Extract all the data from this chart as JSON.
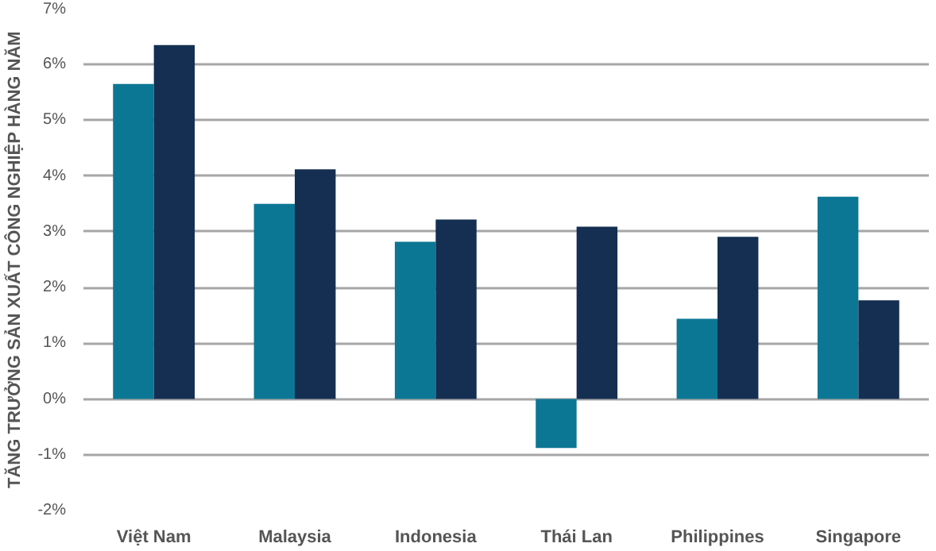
{
  "chart_data": {
    "type": "bar",
    "ylabel": "TĂNG TRƯỞNG SẢN XUẤT CÔNG NGHIỆP HÀNG NĂM",
    "categories": [
      "Việt Nam",
      "Malaysia",
      "Indonesia",
      "Thái Lan",
      "Philippines",
      "Singapore"
    ],
    "series": [
      {
        "color": "#0c7794",
        "values": [
          5.65,
          3.5,
          2.82,
          -0.88,
          1.44,
          3.63
        ]
      },
      {
        "color": "#142f52",
        "values": [
          6.35,
          4.12,
          3.22,
          3.09,
          2.91,
          1.77
        ]
      }
    ],
    "ylim": [
      -2,
      7
    ],
    "yticks": [
      {
        "value": -2,
        "label": "-2%"
      },
      {
        "value": -1,
        "label": "-1%"
      },
      {
        "value": 0,
        "label": "0%"
      },
      {
        "value": 1,
        "label": "1%"
      },
      {
        "value": 2,
        "label": "2%"
      },
      {
        "value": 3,
        "label": "3%"
      },
      {
        "value": 4,
        "label": "4%"
      },
      {
        "value": 5,
        "label": "5%"
      },
      {
        "value": 6,
        "label": "6%"
      },
      {
        "value": 7,
        "label": "7%"
      }
    ],
    "grid": "y"
  }
}
